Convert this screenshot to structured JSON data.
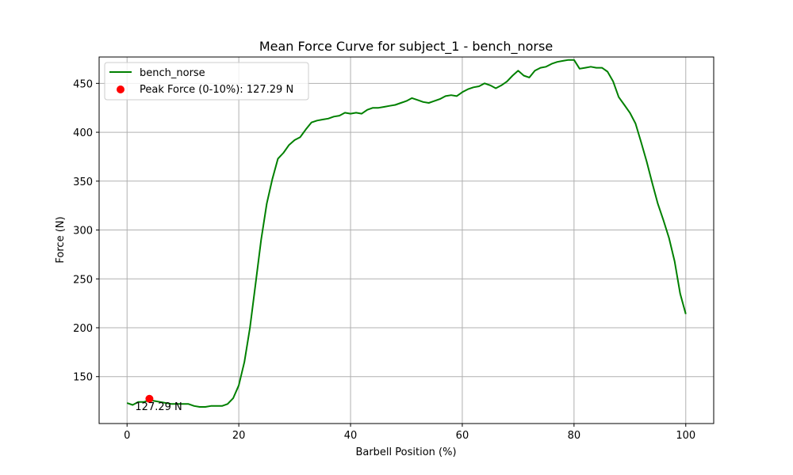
{
  "chart_data": {
    "type": "line",
    "title": "Mean Force Curve for subject_1 - bench_norse",
    "xlabel": "Barbell Position (%)",
    "ylabel": "Force (N)",
    "xlim": [
      -5,
      105
    ],
    "ylim": [
      102,
      477
    ],
    "xticks": [
      0,
      20,
      40,
      60,
      80,
      100
    ],
    "yticks": [
      150,
      200,
      250,
      300,
      350,
      400,
      450
    ],
    "grid": true,
    "legend_position": "top-left",
    "series": [
      {
        "name": "bench_norse",
        "color": "#008000",
        "x": [
          0,
          1,
          2,
          3,
          4,
          5,
          6,
          7,
          8,
          9,
          10,
          11,
          12,
          13,
          14,
          15,
          16,
          17,
          18,
          19,
          20,
          21,
          22,
          23,
          24,
          25,
          26,
          27,
          28,
          29,
          30,
          31,
          32,
          33,
          34,
          35,
          36,
          37,
          38,
          39,
          40,
          41,
          42,
          43,
          44,
          45,
          46,
          47,
          48,
          49,
          50,
          51,
          52,
          53,
          54,
          55,
          56,
          57,
          58,
          59,
          60,
          61,
          62,
          63,
          64,
          65,
          66,
          67,
          68,
          69,
          70,
          71,
          72,
          73,
          74,
          75,
          76,
          77,
          78,
          79,
          80,
          81,
          82,
          83,
          84,
          85,
          86,
          87,
          88,
          89,
          90,
          91,
          92,
          93,
          94,
          95,
          96,
          97,
          98,
          99,
          100
        ],
        "y": [
          123,
          121,
          124,
          124,
          126,
          125,
          124,
          123,
          122,
          122,
          122,
          122,
          120,
          119,
          119,
          120,
          120,
          120,
          122,
          128,
          141,
          165,
          200,
          245,
          290,
          327,
          352,
          373,
          379,
          387,
          392,
          395,
          403,
          410,
          412,
          413,
          414,
          416,
          417,
          420,
          419,
          420,
          419,
          423,
          425,
          425,
          426,
          427,
          428,
          430,
          432,
          435,
          433,
          431,
          430,
          432,
          434,
          437,
          438,
          437,
          441,
          444,
          446,
          447,
          450,
          448,
          445,
          448,
          452,
          458,
          463,
          458,
          456,
          463,
          466,
          467,
          470,
          472,
          473,
          474,
          474,
          465,
          466,
          467,
          466,
          466,
          462,
          452,
          436,
          428,
          420,
          409,
          390,
          370,
          348,
          327,
          310,
          292,
          268,
          235,
          214
        ]
      }
    ],
    "peak": {
      "label": "Peak Force (0-10%): 127.29 N",
      "x": 4.0,
      "y": 127.29,
      "annotation": "127.29 N",
      "color": "#ff0000"
    }
  }
}
